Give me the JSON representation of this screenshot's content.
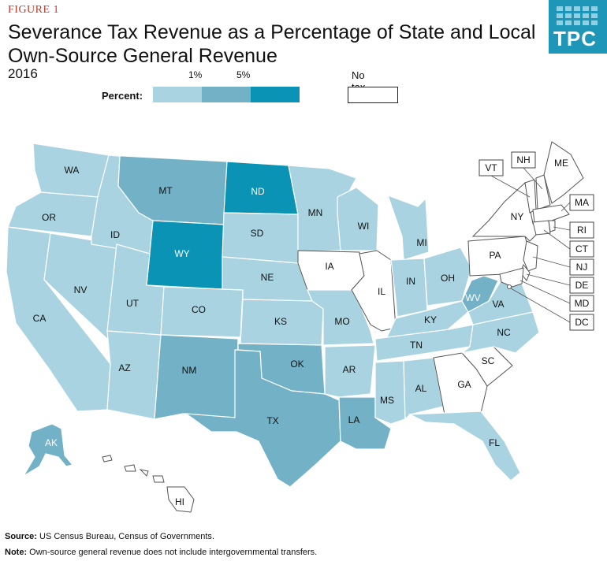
{
  "figure_label": "FIGURE 1",
  "title_line1": "Severance Tax Revenue as a Percentage of State and Local",
  "title_line2": "Own-Source General Revenue",
  "subtitle": "2016",
  "logo_text": "TPC",
  "legend": {
    "label": "Percent:",
    "ticks": [
      "1%",
      "5%"
    ],
    "no_tax_label": "No tax",
    "colors": {
      "low": "#a9d3e1",
      "mid": "#73b1c6",
      "high": "#0b93b5",
      "none": "#ffffff"
    }
  },
  "chart_data": {
    "type": "choropleth",
    "title": "Severance Tax Revenue as a Percentage of State and Local Own-Source General Revenue",
    "year": "2016",
    "bins": [
      "No tax",
      "Under 1%",
      "1% to 5%",
      "Over 5%"
    ],
    "states": {
      "WA": "Under 1%",
      "OR": "Under 1%",
      "CA": "Under 1%",
      "NV": "Under 1%",
      "ID": "Under 1%",
      "MT": "1% to 5%",
      "WY": "Over 5%",
      "UT": "Under 1%",
      "CO": "Under 1%",
      "AZ": "Under 1%",
      "NM": "1% to 5%",
      "ND": "Over 5%",
      "SD": "Under 1%",
      "NE": "Under 1%",
      "KS": "Under 1%",
      "OK": "1% to 5%",
      "TX": "1% to 5%",
      "MN": "Under 1%",
      "IA": "No tax",
      "MO": "Under 1%",
      "AR": "Under 1%",
      "LA": "1% to 5%",
      "WI": "Under 1%",
      "IL": "No tax",
      "MI": "Under 1%",
      "IN": "Under 1%",
      "OH": "Under 1%",
      "KY": "Under 1%",
      "TN": "Under 1%",
      "MS": "Under 1%",
      "AL": "Under 1%",
      "GA": "No tax",
      "FL": "Under 1%",
      "SC": "No tax",
      "NC": "Under 1%",
      "VA": "Under 1%",
      "WV": "1% to 5%",
      "PA": "No tax",
      "NY": "No tax",
      "VT": "No tax",
      "NH": "No tax",
      "ME": "No tax",
      "MA": "No tax",
      "RI": "No tax",
      "CT": "No tax",
      "NJ": "No tax",
      "DE": "No tax",
      "MD": "No tax",
      "DC": "No tax",
      "AK": "1% to 5%",
      "HI": "No tax"
    }
  },
  "labels": {
    "WA": "WA",
    "OR": "OR",
    "CA": "CA",
    "NV": "NV",
    "ID": "ID",
    "MT": "MT",
    "WY": "WY",
    "UT": "UT",
    "CO": "CO",
    "AZ": "AZ",
    "NM": "NM",
    "ND": "ND",
    "SD": "SD",
    "NE": "NE",
    "KS": "KS",
    "OK": "OK",
    "TX": "TX",
    "MN": "MN",
    "IA": "IA",
    "MO": "MO",
    "AR": "AR",
    "LA": "LA",
    "WI": "WI",
    "IL": "IL",
    "MI": "MI",
    "IN": "IN",
    "OH": "OH",
    "KY": "KY",
    "TN": "TN",
    "MS": "MS",
    "AL": "AL",
    "GA": "GA",
    "FL": "FL",
    "SC": "SC",
    "NC": "NC",
    "VA": "VA",
    "WV": "WV",
    "PA": "PA",
    "NY": "NY",
    "ME": "ME",
    "AK": "AK",
    "HI": "HI",
    "VT": "VT",
    "NH": "NH",
    "MA": "MA",
    "RI": "RI",
    "CT": "CT",
    "NJ": "NJ",
    "DE": "DE",
    "MD": "MD",
    "DC": "DC"
  },
  "footer": {
    "source_label": "Source:",
    "source_text": "US Census Bureau, Census of Governments.",
    "note_label": "Note:",
    "note_text": "Own-source general revenue does not include intergovernmental transfers."
  }
}
